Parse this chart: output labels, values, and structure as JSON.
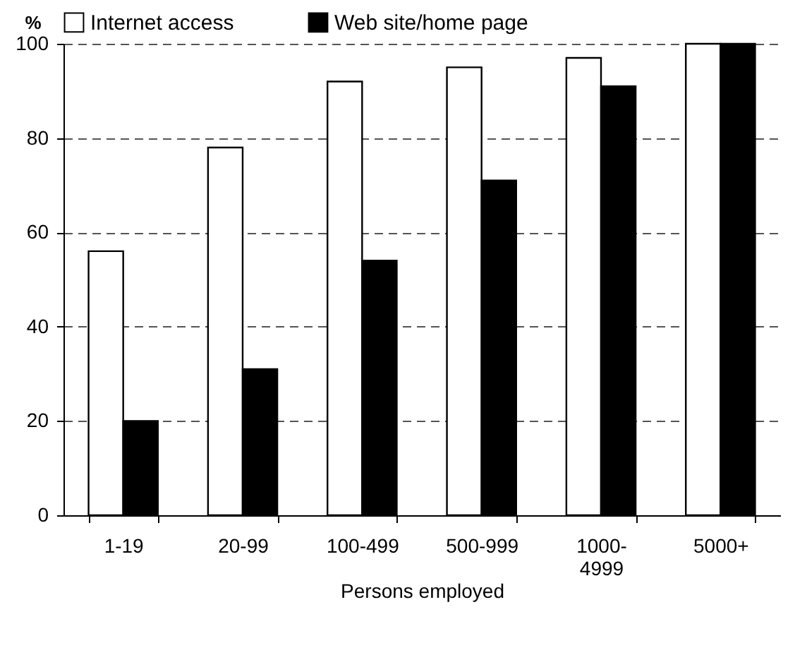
{
  "chart_data": {
    "type": "bar",
    "ylabel": "%",
    "xlabel": "Persons employed",
    "categories": [
      "1-19",
      "20-99",
      "100-499",
      "500-999",
      "1000-\n4999",
      "5000+"
    ],
    "series": [
      {
        "name": "Internet access",
        "color": "#ffffff",
        "values": [
          56,
          78,
          92,
          95,
          97,
          100
        ]
      },
      {
        "name": "Web site/home page",
        "color": "#000000",
        "values": [
          20,
          31,
          54,
          71,
          91,
          100
        ]
      }
    ],
    "ylim": [
      0,
      100
    ],
    "yticks": [
      0,
      20,
      40,
      60,
      80,
      100
    ],
    "grid": "y",
    "legend": "top"
  }
}
